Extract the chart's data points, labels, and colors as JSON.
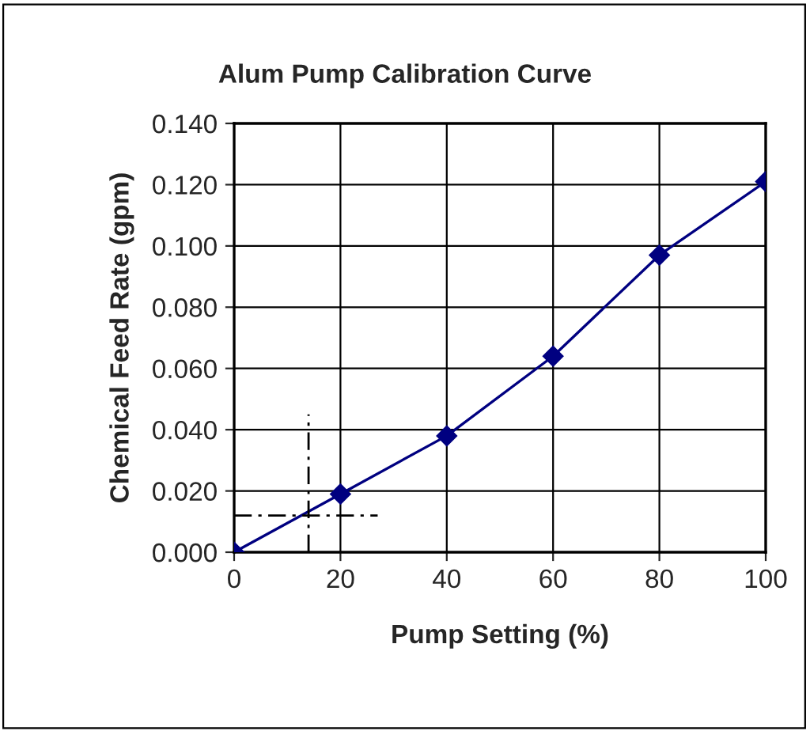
{
  "chart_data": {
    "type": "line",
    "title": "Alum Pump Calibration Curve",
    "xlabel": "Pump Setting (%)",
    "ylabel": "Chemical Feed Rate (gpm)",
    "x": [
      0,
      20,
      40,
      60,
      80,
      100
    ],
    "series": [
      {
        "color": "#000080",
        "values": [
          0.0,
          0.019,
          0.038,
          0.064,
          0.097,
          0.121
        ],
        "marker": "diamond",
        "line_style": "solid"
      },
      {
        "color": "#000000",
        "x": [
          14,
          14
        ],
        "values": [
          0.0,
          0.045
        ],
        "marker": "none",
        "line_style": "dashed"
      },
      {
        "color": "#000000",
        "x": [
          0,
          27
        ],
        "values": [
          0.012,
          0.012
        ],
        "marker": "none",
        "line_style": "dashed"
      }
    ],
    "xlim": [
      0,
      100
    ],
    "xticks": [
      0,
      20,
      40,
      60,
      80,
      100
    ],
    "ylim": [
      0,
      0.14
    ],
    "yticks": [
      {
        "value": 0,
        "label": "0.000"
      },
      {
        "value": 0.02,
        "label": "0.020"
      },
      {
        "value": 0.04,
        "label": "0.040"
      },
      {
        "value": 0.06,
        "label": "0.060"
      },
      {
        "value": 0.08,
        "label": "0.080"
      },
      {
        "value": 0.1,
        "label": "0.100"
      },
      {
        "value": 0.12,
        "label": "0.120"
      },
      {
        "value": 0.14,
        "label": "0.140"
      }
    ],
    "grid": true,
    "legend": false
  }
}
